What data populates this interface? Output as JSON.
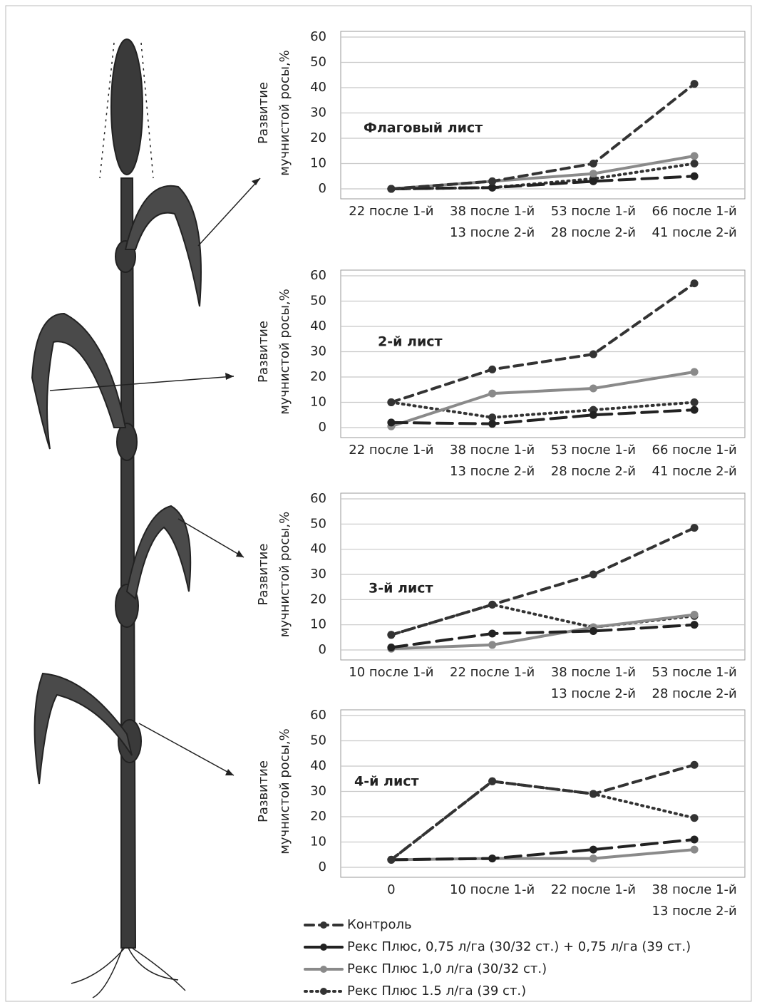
{
  "chart_data": [
    {
      "type": "line",
      "title": "Флаговый лист",
      "ylabel": [
        "Развитие",
        "мучнистой росы,%"
      ],
      "categories": [
        [
          "22 после 1-й"
        ],
        [
          "38 после 1-й",
          "13 после 2-й"
        ],
        [
          "53 после 1-й",
          "28 после 2-й"
        ],
        [
          "66 после 1-й",
          "41 после 2-й"
        ]
      ],
      "series": [
        {
          "values": [
            0,
            3,
            10,
            41.5
          ]
        },
        {
          "values": [
            0,
            0.5,
            3,
            5
          ]
        },
        {
          "values": [
            0,
            3,
            6,
            13
          ]
        },
        {
          "values": [
            0,
            0.5,
            4,
            10
          ]
        }
      ],
      "ylim": [
        0,
        60
      ],
      "yticks": [
        0,
        10,
        20,
        30,
        40,
        50,
        60
      ],
      "grid": true
    },
    {
      "type": "line",
      "title": "2-й лист",
      "ylabel": [
        "Развитие",
        "мучнистой росы,%"
      ],
      "categories": [
        [
          "22 после 1-й"
        ],
        [
          "38 после 1-й",
          "13 после 2-й"
        ],
        [
          "53 после 1-й",
          "28 после 2-й"
        ],
        [
          "66 после 1-й",
          "41 после 2-й"
        ]
      ],
      "series": [
        {
          "values": [
            10,
            23,
            29,
            57
          ]
        },
        {
          "values": [
            2,
            1.5,
            5,
            7
          ]
        },
        {
          "values": [
            0.5,
            13.5,
            15.5,
            22
          ]
        },
        {
          "values": [
            10,
            4,
            7,
            10
          ]
        }
      ],
      "ylim": [
        0,
        60
      ],
      "yticks": [
        0,
        10,
        20,
        30,
        40,
        50,
        60
      ],
      "grid": true
    },
    {
      "type": "line",
      "title": "3-й лист",
      "ylabel": [
        "Развитие",
        "мучнистой росы,%"
      ],
      "categories": [
        [
          "10 после 1-й"
        ],
        [
          "22 после 1-й"
        ],
        [
          "38 после 1-й",
          "13 после 2-й"
        ],
        [
          "53 после 1-й",
          "28 после 2-й"
        ]
      ],
      "series": [
        {
          "values": [
            6,
            18,
            30,
            48.5
          ]
        },
        {
          "values": [
            1,
            6.5,
            7.5,
            10
          ]
        },
        {
          "values": [
            0.5,
            2,
            9,
            14
          ]
        },
        {
          "values": [
            6,
            18,
            9,
            13.5
          ]
        }
      ],
      "ylim": [
        0,
        60
      ],
      "yticks": [
        0,
        10,
        20,
        30,
        40,
        50,
        60
      ],
      "grid": true
    },
    {
      "type": "line",
      "title": "4-й лист",
      "ylabel": [
        "Развитие",
        "мучнистой росы,%"
      ],
      "categories": [
        [
          "0"
        ],
        [
          "10 после 1-й"
        ],
        [
          "22 после 1-й"
        ],
        [
          "38 после 1-й",
          "13 после 2-й"
        ]
      ],
      "series": [
        {
          "values": [
            3,
            34,
            29,
            40.5
          ]
        },
        {
          "values": [
            3,
            3.5,
            7,
            11
          ]
        },
        {
          "values": [
            3,
            3.5,
            3.5,
            7
          ]
        },
        {
          "values": [
            3,
            34,
            29,
            19.5
          ]
        }
      ],
      "ylim": [
        0,
        60
      ],
      "yticks": [
        0,
        10,
        20,
        30,
        40,
        50,
        60
      ],
      "grid": true
    }
  ],
  "legend": [
    {
      "name": "Контроль",
      "color": "#333333",
      "dash": "12 8"
    },
    {
      "name": "Рекс Плюс, 0,75 л/га (30/32 ст.) + 0,75 л/га (39 ст.)",
      "color": "#222222",
      "dash": "22 10"
    },
    {
      "name": "Рекс Плюс 1,0 л/га (30/32 ст.)",
      "color": "#8a8a8a",
      "dash": "none"
    },
    {
      "name": "Рекс Плюс 1.5 л/га (39  ст.)",
      "color": "#333333",
      "dash": "2 6"
    }
  ]
}
